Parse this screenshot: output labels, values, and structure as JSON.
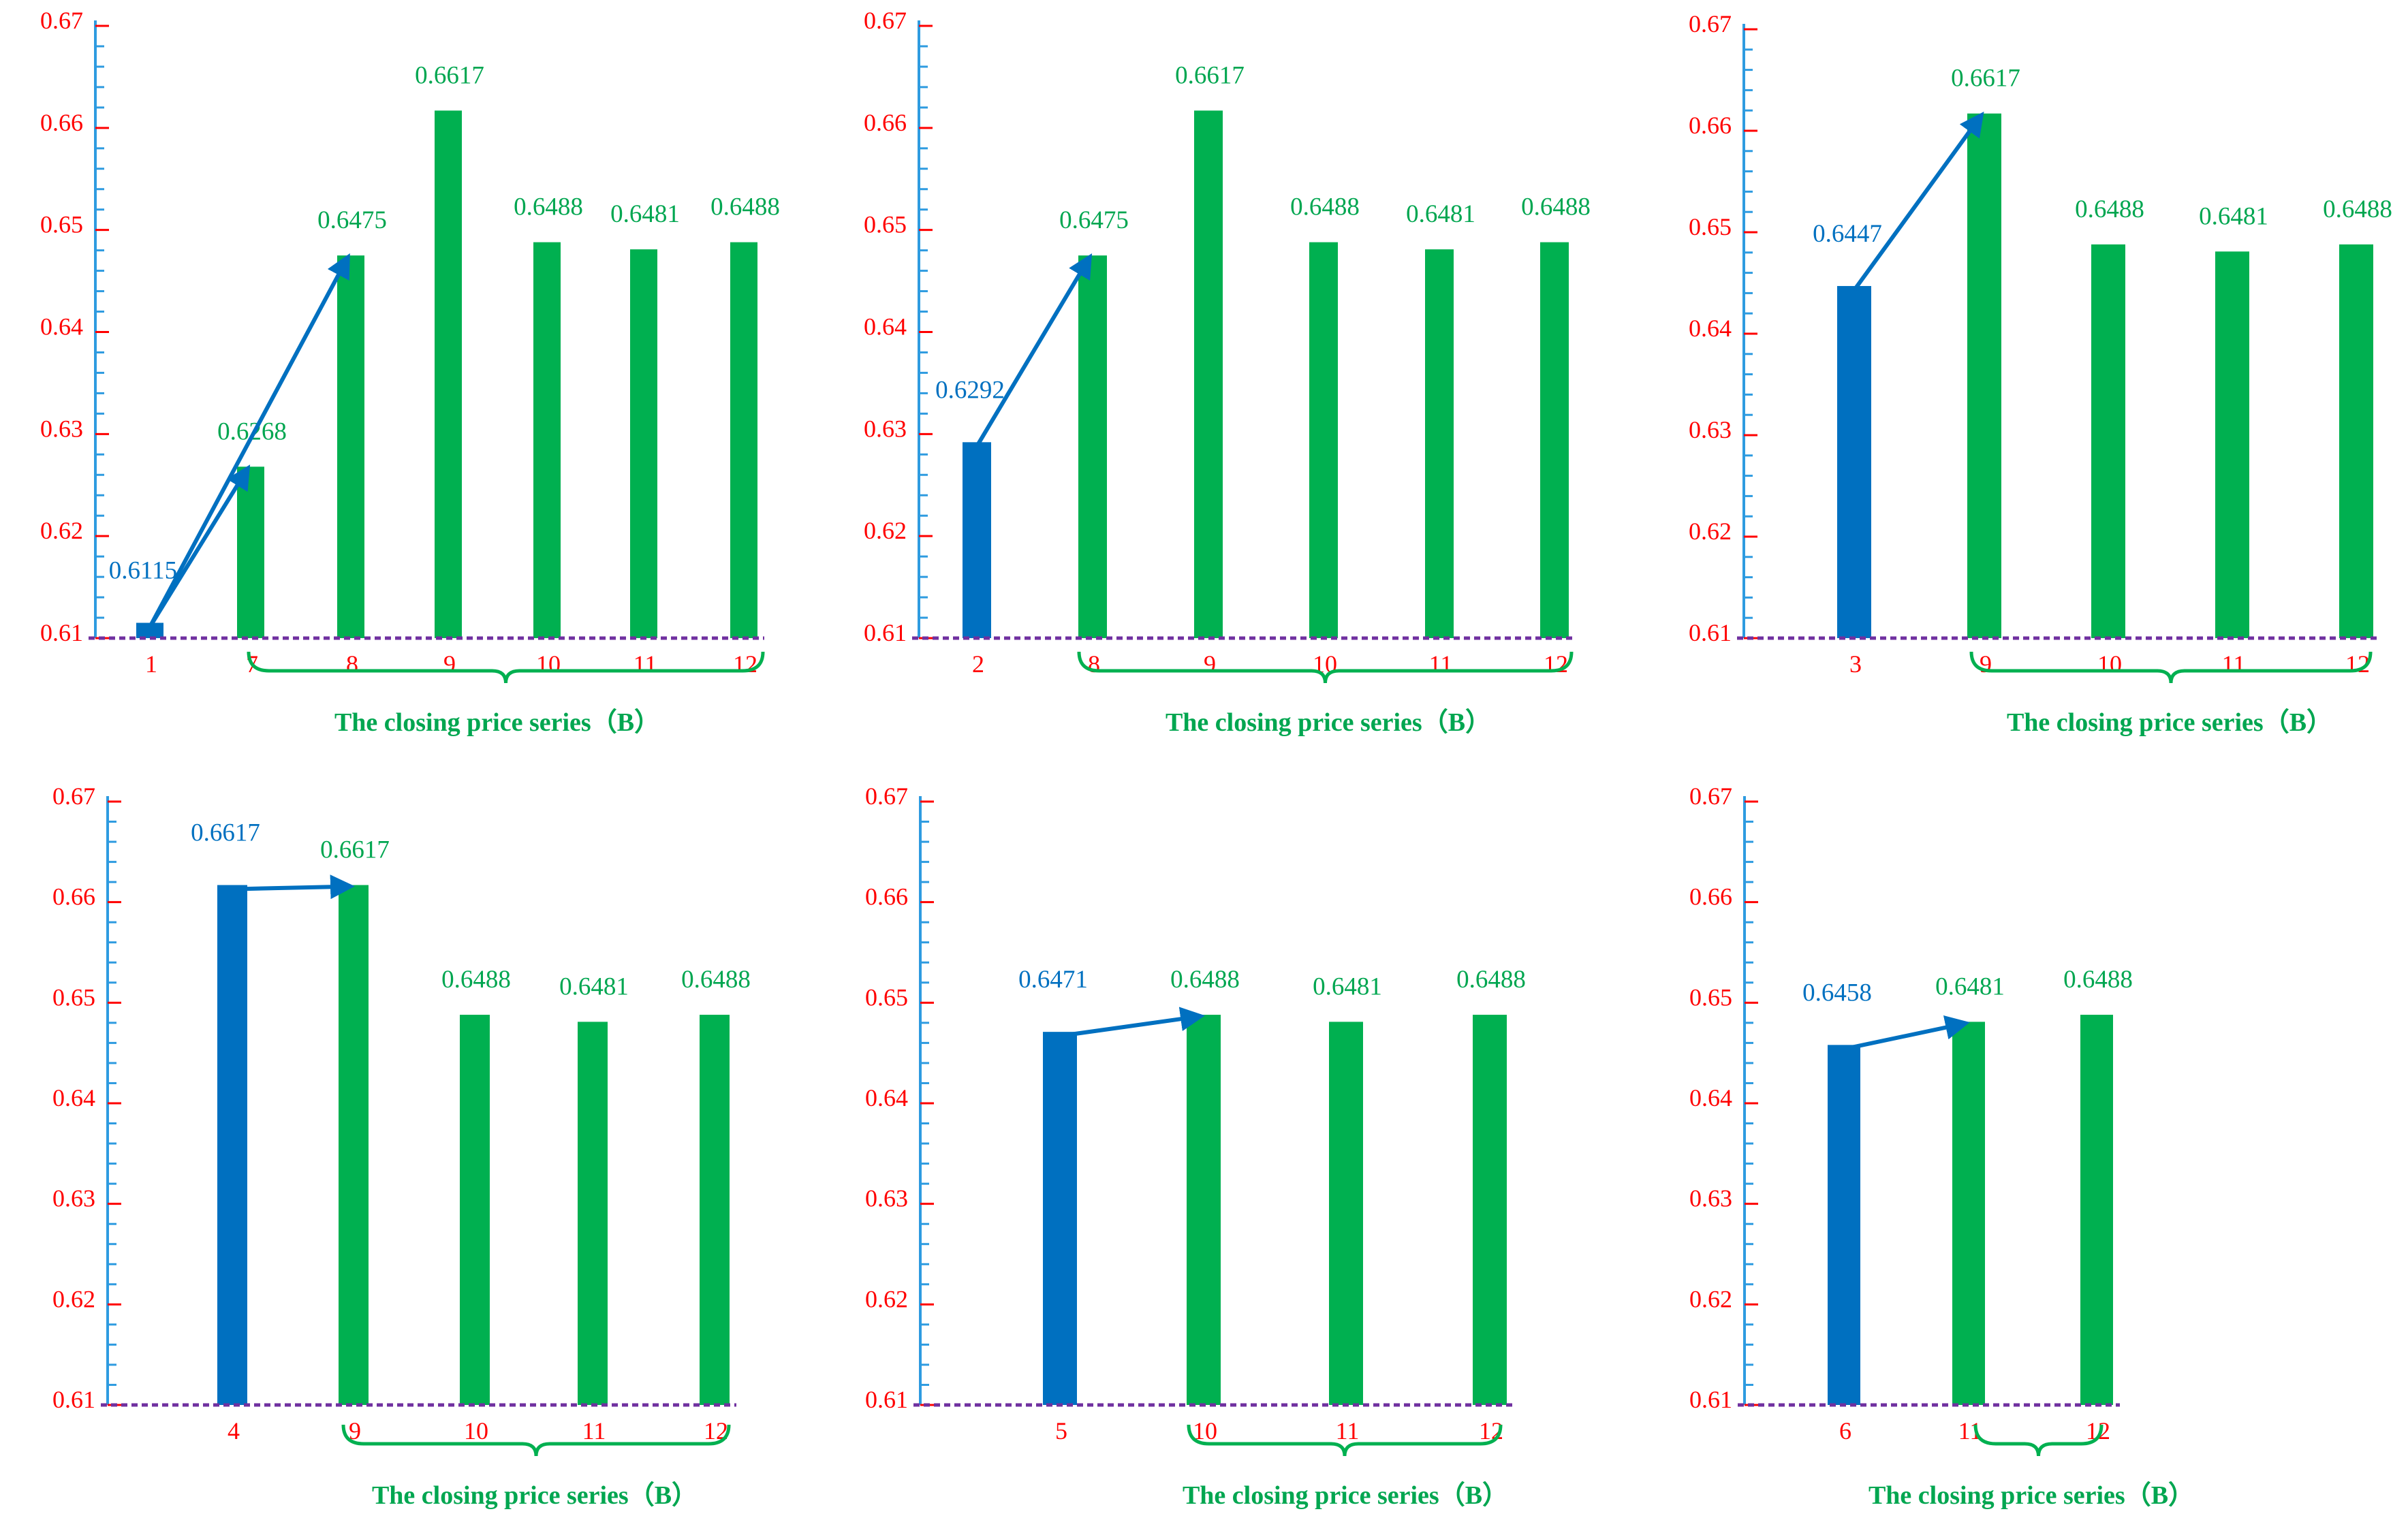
{
  "colors": {
    "tick_label": "#ff0000",
    "axis": "#2e9be0",
    "base_bar": "#0070c0",
    "series_bar": "#00b050",
    "base_label": "#0070c0",
    "series_label": "#00a650",
    "arrow": "#0070c0",
    "baseline": "#7030a0",
    "brace": "#00b050",
    "x_tick_label": "#ff0000",
    "caption": "#00a650"
  },
  "chart_data": [
    {
      "type": "bar",
      "ylim": [
        0.61,
        0.67
      ],
      "yticks": [
        "0.61",
        "0.62",
        "0.63",
        "0.64",
        "0.65",
        "0.66",
        "0.67"
      ],
      "categories": [
        "1",
        "7",
        "8",
        "9",
        "10",
        "11",
        "12"
      ],
      "values": [
        0.6115,
        0.6268,
        0.6475,
        0.6617,
        0.6488,
        0.6481,
        0.6488
      ],
      "value_labels": [
        "0.6115",
        "0.6268",
        "0.6475",
        "0.6617",
        "0.6488",
        "0.6481",
        "0.6488"
      ],
      "base_index": 0,
      "arrows": [
        [
          0,
          1
        ],
        [
          0,
          2
        ]
      ],
      "brace_from": 1,
      "brace_to": 6,
      "caption": "The closing price series（B）"
    },
    {
      "type": "bar",
      "ylim": [
        0.61,
        0.67
      ],
      "yticks": [
        "0.61",
        "0.62",
        "0.63",
        "0.64",
        "0.65",
        "0.66",
        "0.67"
      ],
      "categories": [
        "2",
        "8",
        "9",
        "10",
        "11",
        "12"
      ],
      "values": [
        0.6292,
        0.6475,
        0.6617,
        0.6488,
        0.6481,
        0.6488
      ],
      "value_labels": [
        "0.6292",
        "0.6475",
        "0.6617",
        "0.6488",
        "0.6481",
        "0.6488"
      ],
      "base_index": 0,
      "arrows": [
        [
          0,
          1
        ]
      ],
      "brace_from": 1,
      "brace_to": 5,
      "caption": "The closing price series（B）"
    },
    {
      "type": "bar",
      "ylim": [
        0.61,
        0.67
      ],
      "yticks": [
        "0.61",
        "0.62",
        "0.63",
        "0.64",
        "0.65",
        "0.66",
        "0.67"
      ],
      "categories": [
        "3",
        "9",
        "10",
        "11",
        "12"
      ],
      "values": [
        0.6447,
        0.6617,
        0.6488,
        0.6481,
        0.6488
      ],
      "value_labels": [
        "0.6447",
        "0.6617",
        "0.6488",
        "0.6481",
        "0.6488"
      ],
      "base_index": 0,
      "arrows": [
        [
          0,
          1
        ]
      ],
      "brace_from": 1,
      "brace_to": 4,
      "caption": "The closing price series（B）"
    },
    {
      "type": "bar",
      "ylim": [
        0.61,
        0.67
      ],
      "yticks": [
        "0.61",
        "0.62",
        "0.63",
        "0.64",
        "0.65",
        "0.66",
        "0.67"
      ],
      "categories": [
        "4",
        "9",
        "10",
        "11",
        "12"
      ],
      "values": [
        0.6617,
        0.6617,
        0.6488,
        0.6481,
        0.6488
      ],
      "value_labels": [
        "0.6617",
        "0.6617",
        "0.6488",
        "0.6481",
        "0.6488"
      ],
      "base_index": 0,
      "arrows": [
        [
          0,
          1
        ]
      ],
      "brace_from": 1,
      "brace_to": 4,
      "caption": "The closing price series（B）"
    },
    {
      "type": "bar",
      "ylim": [
        0.61,
        0.67
      ],
      "yticks": [
        "0.61",
        "0.62",
        "0.63",
        "0.64",
        "0.65",
        "0.66",
        "0.67"
      ],
      "categories": [
        "5",
        "10",
        "11",
        "12"
      ],
      "values": [
        0.6471,
        0.6488,
        0.6481,
        0.6488
      ],
      "value_labels": [
        "0.6471",
        "0.6488",
        "0.6481",
        "0.6488"
      ],
      "base_index": 0,
      "arrows": [
        [
          0,
          1
        ]
      ],
      "brace_from": 1,
      "brace_to": 3,
      "caption": "The closing price series（B）"
    },
    {
      "type": "bar",
      "ylim": [
        0.61,
        0.67
      ],
      "yticks": [
        "0.61",
        "0.62",
        "0.63",
        "0.64",
        "0.65",
        "0.66",
        "0.67"
      ],
      "categories": [
        "6",
        "11",
        "12"
      ],
      "values": [
        0.6458,
        0.6481,
        0.6488
      ],
      "value_labels": [
        "0.6458",
        "0.6481",
        "0.6488"
      ],
      "base_index": 0,
      "arrows": [
        [
          0,
          1
        ]
      ],
      "brace_from": 1,
      "brace_to": 2,
      "caption": "The closing price series（B）"
    }
  ]
}
